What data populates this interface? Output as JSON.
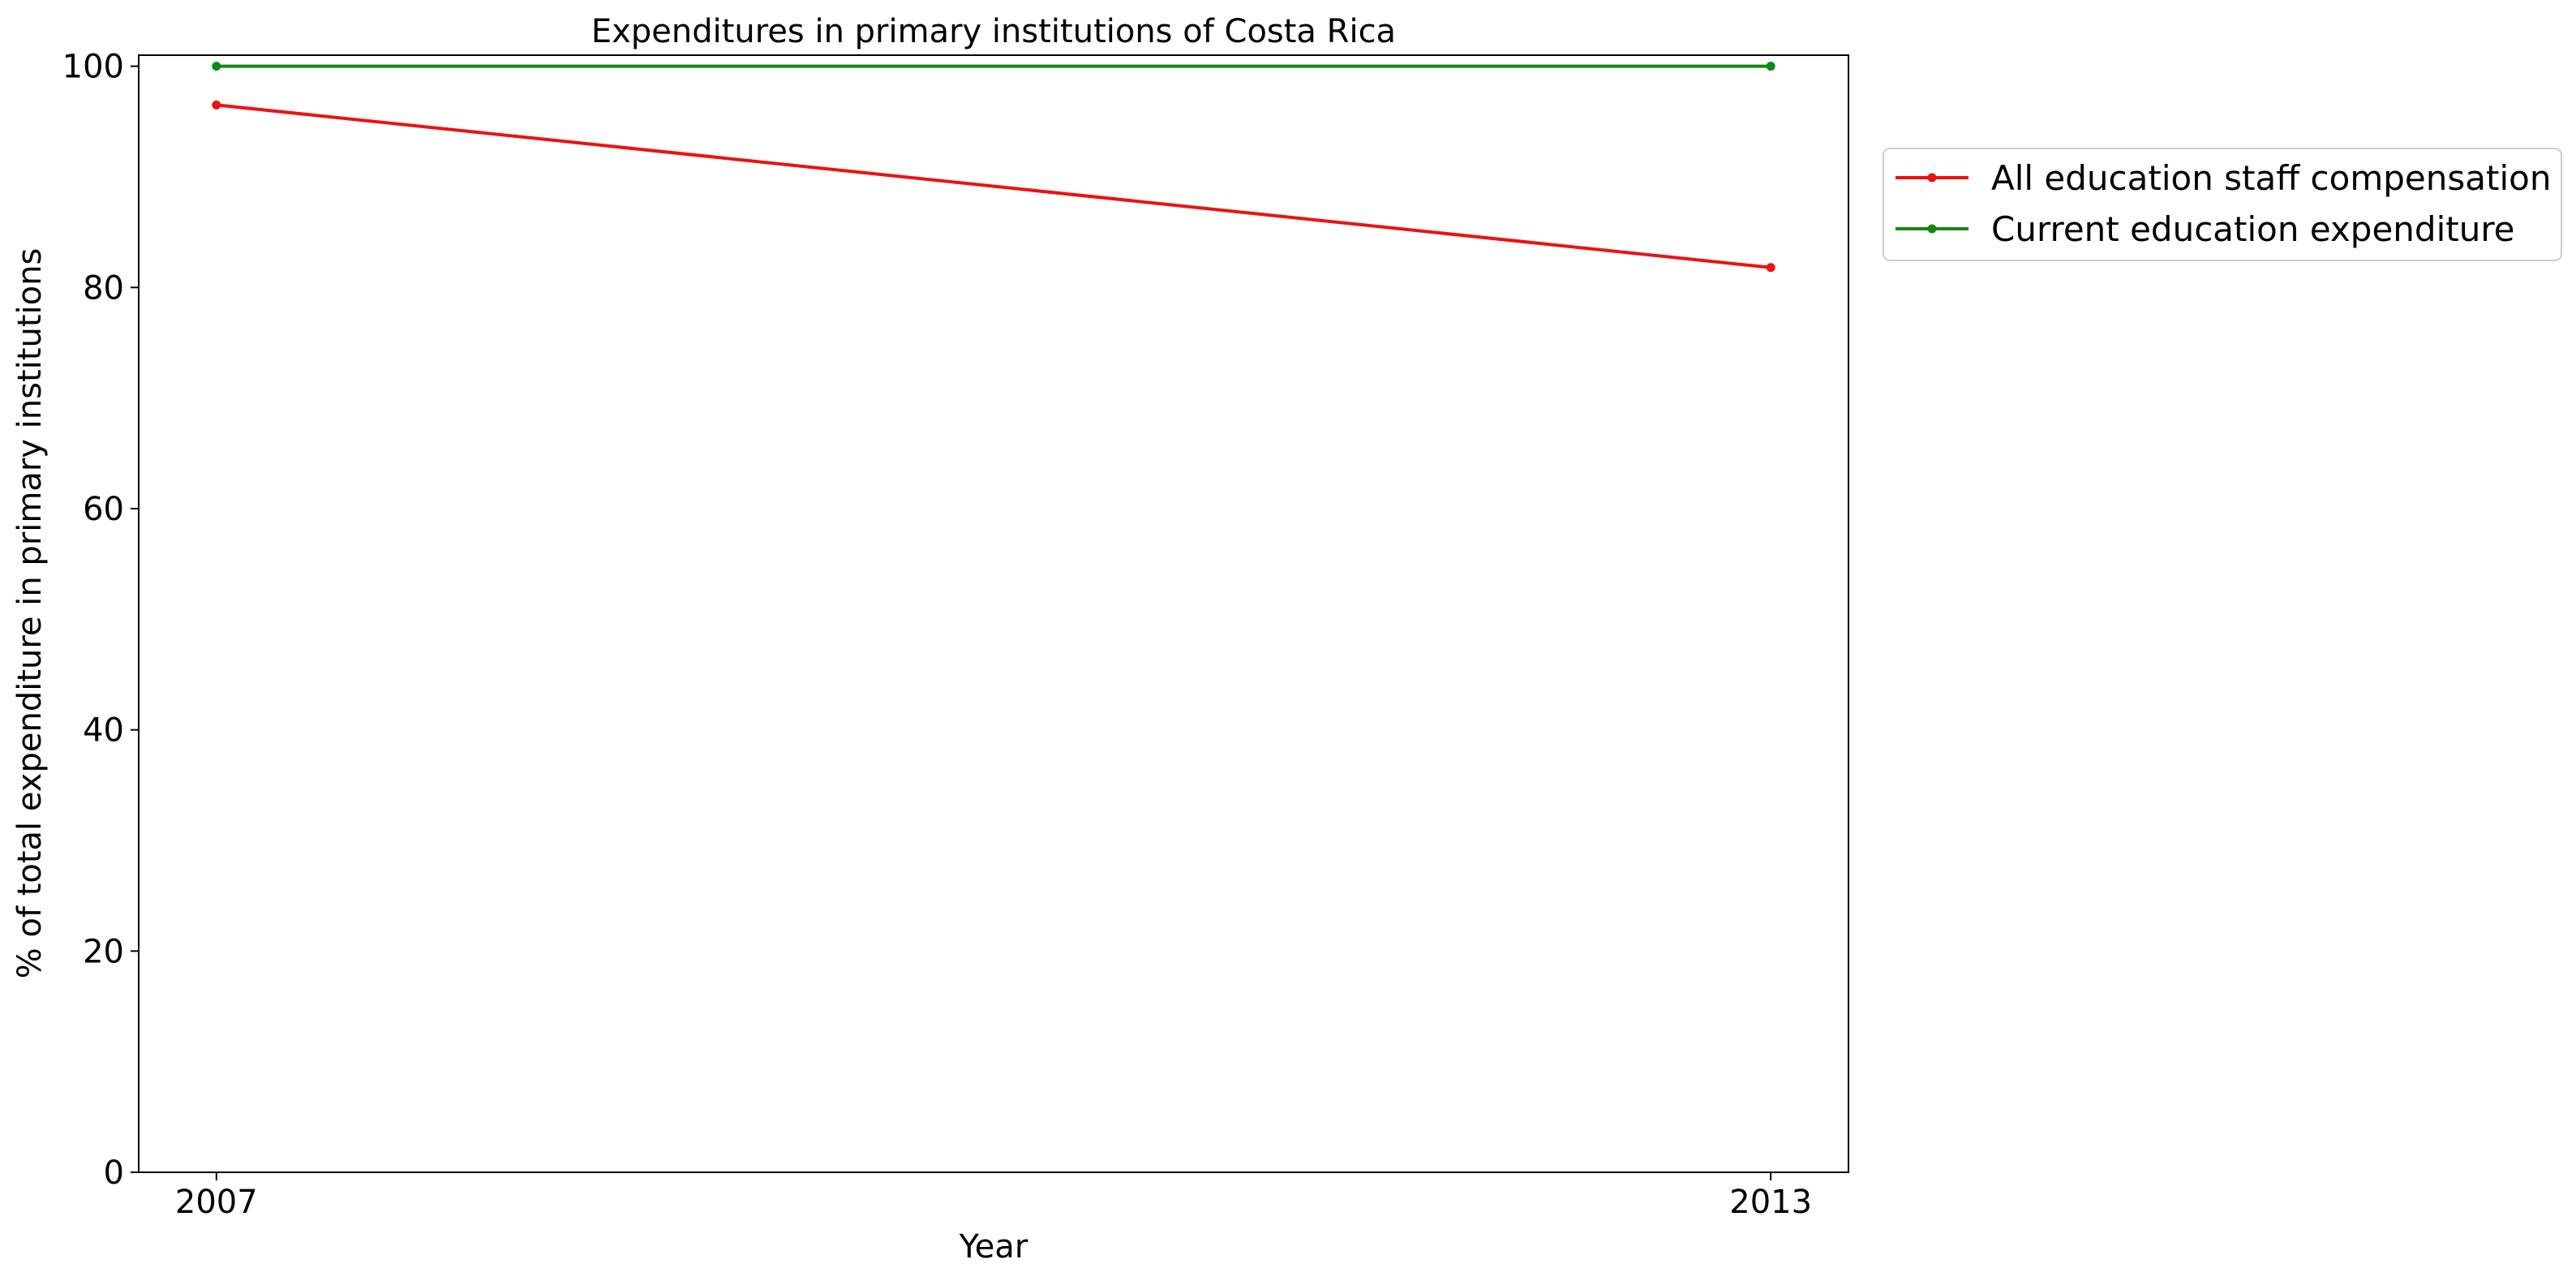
{
  "chart_data": {
    "type": "line",
    "title": "Expenditures in primary institutions of Costa Rica",
    "xlabel": "Year",
    "ylabel": "% of total expenditure in primary institutions",
    "x": [
      2007,
      2013
    ],
    "x_ticks": [
      "2007",
      "2013"
    ],
    "xlim": [
      2006.7,
      2013.3
    ],
    "ylim": [
      0,
      101
    ],
    "y_ticks": [
      0,
      20,
      40,
      60,
      80,
      100
    ],
    "grid": false,
    "legend_position": "outside-right-top",
    "series": [
      {
        "name": "All education staff compensation",
        "color": "#ee1111",
        "values": [
          96.5,
          81.8
        ]
      },
      {
        "name": "Current education expenditure",
        "color": "#118811",
        "values": [
          100,
          100
        ]
      }
    ]
  }
}
